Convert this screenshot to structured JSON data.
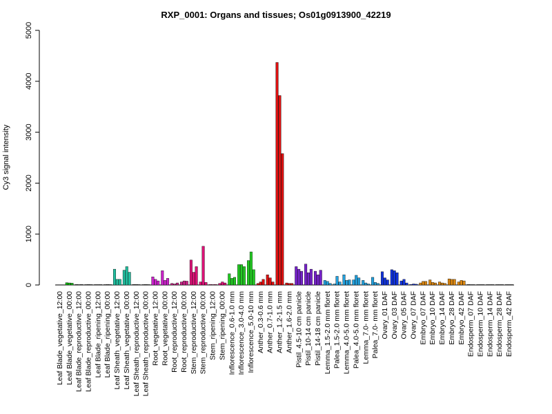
{
  "chart_data": {
    "type": "bar",
    "title": "RXP_0001: Organs and tissues; Os01g0913900_42219",
    "xlabel": "",
    "ylabel": "Cy3 signal intensity",
    "ylim": [
      0,
      5000
    ],
    "yticks": [
      0,
      1000,
      2000,
      3000,
      4000,
      5000
    ],
    "grid": false,
    "legend": "none",
    "groups": [
      {
        "label": "Leaf Blade_vegetative_12:00",
        "color": "#444444",
        "values": [
          5,
          5,
          5
        ]
      },
      {
        "label": "Leaf Blade_vegetative_00:00",
        "color": "#14b814",
        "values": [
          45,
          40,
          35
        ]
      },
      {
        "label": "Leaf Blade_reproductive_12:00",
        "color": "#444444",
        "values": [
          10,
          8,
          10
        ]
      },
      {
        "label": "Leaf Blade_reproductive_00:00",
        "color": "#444444",
        "values": [
          8,
          10,
          8
        ]
      },
      {
        "label": "Leaf Blade_ripening_12:00",
        "color": "#444444",
        "values": [
          8,
          8,
          8
        ]
      },
      {
        "label": "Leaf Blade_ripening_00:00",
        "color": "#444444",
        "values": [
          8,
          10,
          8
        ]
      },
      {
        "label": "Leaf Sheath_vegetative_12:00",
        "color": "#20c0a0",
        "values": [
          310,
          110,
          110
        ]
      },
      {
        "label": "Leaf Sheath_vegetative_00:00",
        "color": "#20c0a0",
        "values": [
          290,
          360,
          250
        ]
      },
      {
        "label": "Leaf Sheath_reproductive_12:00",
        "color": "#444444",
        "values": [
          10,
          10,
          8
        ]
      },
      {
        "label": "Leaf Sheath_reproductive_00:00",
        "color": "#444444",
        "values": [
          8,
          10,
          8
        ]
      },
      {
        "label": "Root_vegetative_12:00",
        "color": "#cc22cc",
        "values": [
          160,
          110,
          80
        ]
      },
      {
        "label": "Root_vegetative_00:00",
        "color": "#cc22cc",
        "values": [
          280,
          90,
          130
        ]
      },
      {
        "label": "Root_reproductive_12:00",
        "color": "#cc2288",
        "values": [
          30,
          20,
          40
        ]
      },
      {
        "label": "Root_reproductive_00:00",
        "color": "#cc2288",
        "values": [
          60,
          80,
          75
        ]
      },
      {
        "label": "Stem_reproductive_12:00",
        "color": "#dd1177",
        "values": [
          490,
          250,
          360
        ]
      },
      {
        "label": "Stem_reproductive_00:00",
        "color": "#dd1177",
        "values": [
          60,
          760,
          50
        ]
      },
      {
        "label": "Stem_ripening_12:00",
        "color": "#dd1177",
        "values": [
          10,
          8,
          10
        ]
      },
      {
        "label": "Stem_ripening_00:00",
        "color": "#dd1177",
        "values": [
          30,
          60,
          40
        ]
      },
      {
        "label": "Inflorescence_0.6-1.0 mm",
        "color": "#22cc22",
        "values": [
          220,
          130,
          150
        ]
      },
      {
        "label": "Inflorescence_3.0-4.0 mm",
        "color": "#22cc22",
        "values": [
          400,
          400,
          360
        ]
      },
      {
        "label": "Inflorescence_5.0-10 mm",
        "color": "#22cc22",
        "values": [
          480,
          650,
          300
        ]
      },
      {
        "label": "Anther_0.3-0.6 mm",
        "color": "#dd1111",
        "values": [
          30,
          60,
          110
        ]
      },
      {
        "label": "Anther_0.7-1.0 mm",
        "color": "#dd1111",
        "values": [
          200,
          140,
          60
        ]
      },
      {
        "label": "Anther_1.2-1.5 mm",
        "color": "#dd1111",
        "values": [
          4370,
          3720,
          2580
        ]
      },
      {
        "label": "Anther_1.6-2.0 mm",
        "color": "#dd1111",
        "values": [
          40,
          30,
          30
        ]
      },
      {
        "label": "Pistil_4.5-10 cm panicle",
        "color": "#7722cc",
        "values": [
          360,
          310,
          270
        ]
      },
      {
        "label": "Pistil_10-14 cm panicle",
        "color": "#7722cc",
        "values": [
          410,
          240,
          310
        ]
      },
      {
        "label": "Pistil_14-18 cm panicle",
        "color": "#7722cc",
        "values": [
          270,
          200,
          290
        ]
      },
      {
        "label": "Lemma_1.5-2.0 mm floret",
        "color": "#22a0dd",
        "values": [
          90,
          70,
          30
        ]
      },
      {
        "label": "Palea_1.5-2.0 mm floret",
        "color": "#22a0dd",
        "values": [
          20,
          170,
          60
        ]
      },
      {
        "label": "Lemma_4.0-5.0 mm floret",
        "color": "#22a0dd",
        "values": [
          200,
          90,
          100
        ]
      },
      {
        "label": "Palea_4.0-5.0 mm floret",
        "color": "#22a0dd",
        "values": [
          100,
          190,
          140
        ]
      },
      {
        "label": "Lemma_7.0- mm floret",
        "color": "#22a0dd",
        "values": [
          90,
          40,
          20
        ]
      },
      {
        "label": "Palea_7.0- mm floret",
        "color": "#22a0dd",
        "values": [
          150,
          50,
          30
        ]
      },
      {
        "label": "Ovary_01 DAF",
        "color": "#1133dd",
        "values": [
          260,
          140,
          100
        ]
      },
      {
        "label": "Ovary_03 DAF",
        "color": "#1133dd",
        "values": [
          300,
          280,
          240
        ]
      },
      {
        "label": "Ovary_05 DAF",
        "color": "#1133dd",
        "values": [
          80,
          110,
          40
        ]
      },
      {
        "label": "Ovary_07 DAF",
        "color": "#1133dd",
        "values": [
          10,
          20,
          15
        ]
      },
      {
        "label": "Embryo_07 DAF",
        "color": "#dd8811",
        "values": [
          40,
          70,
          70
        ]
      },
      {
        "label": "Embryo_10 DAF",
        "color": "#dd8811",
        "values": [
          100,
          50,
          40
        ]
      },
      {
        "label": "Embryo_14 DAF",
        "color": "#dd8811",
        "values": [
          60,
          40,
          30
        ]
      },
      {
        "label": "Embryo_28 DAF",
        "color": "#dd8811",
        "values": [
          120,
          110,
          110
        ]
      },
      {
        "label": "Embryo_42 DAF",
        "color": "#dd8811",
        "values": [
          60,
          90,
          80
        ]
      },
      {
        "label": "Endosperm_07 DAF",
        "color": "#444444",
        "values": [
          10,
          8,
          8
        ]
      },
      {
        "label": "Endosperm_10 DAF",
        "color": "#444444",
        "values": [
          8,
          8,
          8
        ]
      },
      {
        "label": "Endosperm_14 DAF",
        "color": "#444444",
        "values": [
          8,
          8,
          8
        ]
      },
      {
        "label": "Endosperm_28 DAF",
        "color": "#444444",
        "values": [
          8,
          8,
          8
        ]
      },
      {
        "label": "Endosperm_42 DAF",
        "color": "#444444",
        "values": [
          8,
          8,
          8
        ]
      }
    ]
  }
}
